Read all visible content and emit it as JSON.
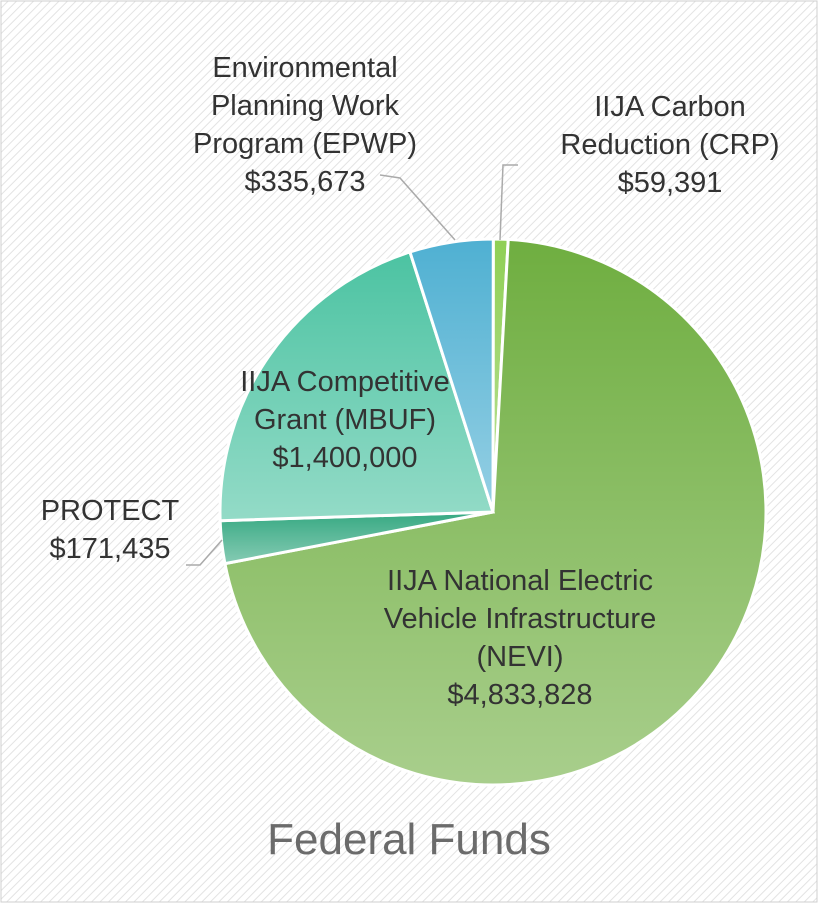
{
  "chart_data": {
    "type": "pie",
    "title": "Federal Funds",
    "categories": [
      "IIJA Carbon Reduction (CRP)",
      "IIJA National Electric Vehicle Infrastructure (NEVI)",
      "PROTECT",
      "IIJA Competitive Grant (MBUF)",
      "Environmental Planning Work Program (EPWP)"
    ],
    "values": [
      59391,
      4833828,
      171435,
      1400000,
      335673
    ],
    "value_labels": [
      "$59,391",
      "$4,833,828",
      "$171,435",
      "$1,400,000",
      "$335,673"
    ],
    "colors": [
      "#8fcf55",
      "#6fae40",
      "#36a982",
      "#4cc3a2",
      "#4fb0d2"
    ]
  }
}
